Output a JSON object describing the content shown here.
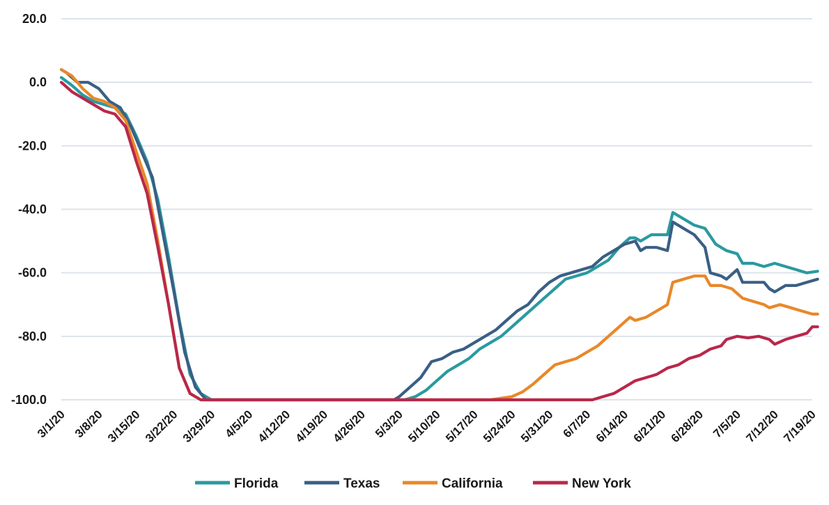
{
  "chart_data": {
    "type": "line",
    "title": "",
    "xlabel": "",
    "ylabel": "",
    "ylim": [
      -100,
      20
    ],
    "yticks": [
      "20.0",
      "0.0",
      "-20.0",
      "-40.0",
      "-60.0",
      "-80.0",
      "-100.0"
    ],
    "ytick_values": [
      20,
      0,
      -20,
      -40,
      -60,
      -80,
      -100
    ],
    "x_start": "3/1/20",
    "x_end": "7/19/20",
    "xticks": [
      "3/1/20",
      "3/8/20",
      "3/15/20",
      "3/22/20",
      "3/29/20",
      "4/5/20",
      "4/12/20",
      "4/19/20",
      "4/26/20",
      "5/3/20",
      "5/10/20",
      "5/17/20",
      "5/24/20",
      "5/31/20",
      "6/7/20",
      "6/14/20",
      "6/21/20",
      "6/28/20",
      "7/5/20",
      "7/12/20",
      "7/19/20"
    ],
    "grid": true,
    "legend_position": "bottom",
    "series": [
      {
        "name": "Florida",
        "color": "#2a9aa0",
        "points": [
          [
            "3/1/20",
            1.5
          ],
          [
            "3/3/20",
            -1
          ],
          [
            "3/5/20",
            -4
          ],
          [
            "3/7/20",
            -6
          ],
          [
            "3/9/20",
            -7
          ],
          [
            "3/11/20",
            -8
          ],
          [
            "3/13/20",
            -10
          ],
          [
            "3/15/20",
            -17
          ],
          [
            "3/17/20",
            -25
          ],
          [
            "3/19/20",
            -37
          ],
          [
            "3/21/20",
            -55
          ],
          [
            "3/23/20",
            -75
          ],
          [
            "3/25/20",
            -92
          ],
          [
            "3/27/20",
            -98
          ],
          [
            "3/29/20",
            -100
          ],
          [
            "5/4/20",
            -100
          ],
          [
            "5/6/20",
            -99
          ],
          [
            "5/8/20",
            -97
          ],
          [
            "5/10/20",
            -94
          ],
          [
            "5/12/20",
            -91
          ],
          [
            "5/14/20",
            -89
          ],
          [
            "5/16/20",
            -87
          ],
          [
            "5/18/20",
            -84
          ],
          [
            "5/20/20",
            -82
          ],
          [
            "5/22/20",
            -80
          ],
          [
            "5/24/20",
            -77
          ],
          [
            "5/26/20",
            -74
          ],
          [
            "5/28/20",
            -71
          ],
          [
            "5/30/20",
            -68
          ],
          [
            "6/1/20",
            -65
          ],
          [
            "6/3/20",
            -62
          ],
          [
            "6/5/20",
            -61
          ],
          [
            "6/7/20",
            -60
          ],
          [
            "6/9/20",
            -58
          ],
          [
            "6/11/20",
            -56
          ],
          [
            "6/13/20",
            -52
          ],
          [
            "6/15/20",
            -49
          ],
          [
            "6/16/20",
            -49
          ],
          [
            "6/17/20",
            -50
          ],
          [
            "6/19/20",
            -48
          ],
          [
            "6/21/20",
            -48
          ],
          [
            "6/22/20",
            -48
          ],
          [
            "6/23/20",
            -41
          ],
          [
            "6/25/20",
            -43
          ],
          [
            "6/27/20",
            -45
          ],
          [
            "6/29/20",
            -46
          ],
          [
            "7/1/20",
            -51
          ],
          [
            "7/3/20",
            -53
          ],
          [
            "7/5/20",
            -54
          ],
          [
            "7/6/20",
            -57
          ],
          [
            "7/8/20",
            -57
          ],
          [
            "7/10/20",
            -58
          ],
          [
            "7/12/20",
            -57
          ],
          [
            "7/14/20",
            -58
          ],
          [
            "7/16/20",
            -59
          ],
          [
            "7/18/20",
            -60
          ],
          [
            "7/20/20",
            -59.5
          ]
        ]
      },
      {
        "name": "Texas",
        "color": "#3a5f85",
        "points": [
          [
            "3/1/20",
            4
          ],
          [
            "3/2/20",
            3
          ],
          [
            "3/4/20",
            0
          ],
          [
            "3/6/20",
            0
          ],
          [
            "3/8/20",
            -2
          ],
          [
            "3/10/20",
            -6
          ],
          [
            "3/12/20",
            -8
          ],
          [
            "3/14/20",
            -14
          ],
          [
            "3/16/20",
            -22
          ],
          [
            "3/18/20",
            -30
          ],
          [
            "3/20/20",
            -48
          ],
          [
            "3/22/20",
            -66
          ],
          [
            "3/24/20",
            -85
          ],
          [
            "3/26/20",
            -96
          ],
          [
            "3/28/20",
            -100
          ],
          [
            "5/2/20",
            -100
          ],
          [
            "5/3/20",
            -99
          ],
          [
            "5/5/20",
            -96
          ],
          [
            "5/7/20",
            -93
          ],
          [
            "5/9/20",
            -88
          ],
          [
            "5/11/20",
            -87
          ],
          [
            "5/13/20",
            -85
          ],
          [
            "5/15/20",
            -84
          ],
          [
            "5/17/20",
            -82
          ],
          [
            "5/19/20",
            -80
          ],
          [
            "5/21/20",
            -78
          ],
          [
            "5/23/20",
            -75
          ],
          [
            "5/25/20",
            -72
          ],
          [
            "5/27/20",
            -70
          ],
          [
            "5/29/20",
            -66
          ],
          [
            "5/31/20",
            -63
          ],
          [
            "6/2/20",
            -61
          ],
          [
            "6/4/20",
            -60
          ],
          [
            "6/6/20",
            -59
          ],
          [
            "6/8/20",
            -58
          ],
          [
            "6/10/20",
            -55
          ],
          [
            "6/12/20",
            -53
          ],
          [
            "6/14/20",
            -51
          ],
          [
            "6/16/20",
            -50
          ],
          [
            "6/17/20",
            -53
          ],
          [
            "6/18/20",
            -52
          ],
          [
            "6/20/20",
            -52
          ],
          [
            "6/22/20",
            -53
          ],
          [
            "6/23/20",
            -44
          ],
          [
            "6/25/20",
            -46
          ],
          [
            "6/27/20",
            -48
          ],
          [
            "6/29/20",
            -52
          ],
          [
            "6/30/20",
            -60
          ],
          [
            "7/2/20",
            -61
          ],
          [
            "7/3/20",
            -62
          ],
          [
            "7/5/20",
            -59
          ],
          [
            "7/6/20",
            -63
          ],
          [
            "7/8/20",
            -63
          ],
          [
            "7/10/20",
            -63
          ],
          [
            "7/11/20",
            -65
          ],
          [
            "7/12/20",
            -66
          ],
          [
            "7/14/20",
            -64
          ],
          [
            "7/16/20",
            -64
          ],
          [
            "7/18/20",
            -63
          ],
          [
            "7/20/20",
            -62
          ]
        ]
      },
      {
        "name": "California",
        "color": "#e8882a",
        "points": [
          [
            "3/1/20",
            4
          ],
          [
            "3/3/20",
            2
          ],
          [
            "3/5/20",
            -2
          ],
          [
            "3/7/20",
            -5
          ],
          [
            "3/9/20",
            -6
          ],
          [
            "3/11/20",
            -8
          ],
          [
            "3/13/20",
            -12
          ],
          [
            "3/15/20",
            -22
          ],
          [
            "3/17/20",
            -32
          ],
          [
            "3/19/20",
            -50
          ],
          [
            "3/21/20",
            -70
          ],
          [
            "3/23/20",
            -90
          ],
          [
            "3/25/20",
            -98
          ],
          [
            "3/27/20",
            -100
          ],
          [
            "5/20/20",
            -100
          ],
          [
            "5/22/20",
            -99.5
          ],
          [
            "5/24/20",
            -99
          ],
          [
            "5/26/20",
            -97.5
          ],
          [
            "5/28/20",
            -95
          ],
          [
            "5/30/20",
            -92
          ],
          [
            "6/1/20",
            -89
          ],
          [
            "6/3/20",
            -88
          ],
          [
            "6/5/20",
            -87
          ],
          [
            "6/7/20",
            -85
          ],
          [
            "6/9/20",
            -83
          ],
          [
            "6/11/20",
            -80
          ],
          [
            "6/13/20",
            -77
          ],
          [
            "6/15/20",
            -74
          ],
          [
            "6/16/20",
            -75
          ],
          [
            "6/18/20",
            -74
          ],
          [
            "6/20/20",
            -72
          ],
          [
            "6/22/20",
            -70
          ],
          [
            "6/23/20",
            -63
          ],
          [
            "6/25/20",
            -62
          ],
          [
            "6/27/20",
            -61
          ],
          [
            "6/29/20",
            -61
          ],
          [
            "6/30/20",
            -64
          ],
          [
            "7/2/20",
            -64
          ],
          [
            "7/4/20",
            -65
          ],
          [
            "7/6/20",
            -68
          ],
          [
            "7/8/20",
            -69
          ],
          [
            "7/10/20",
            -70
          ],
          [
            "7/11/20",
            -71
          ],
          [
            "7/13/20",
            -70
          ],
          [
            "7/15/20",
            -71
          ],
          [
            "7/17/20",
            -72
          ],
          [
            "7/19/20",
            -73
          ],
          [
            "7/20/20",
            -73
          ]
        ]
      },
      {
        "name": "New York",
        "color": "#b8284a",
        "points": [
          [
            "3/1/20",
            0
          ],
          [
            "3/3/20",
            -3
          ],
          [
            "3/5/20",
            -5
          ],
          [
            "3/7/20",
            -7
          ],
          [
            "3/9/20",
            -9
          ],
          [
            "3/11/20",
            -10
          ],
          [
            "3/13/20",
            -14
          ],
          [
            "3/15/20",
            -25
          ],
          [
            "3/17/20",
            -35
          ],
          [
            "3/19/20",
            -52
          ],
          [
            "3/21/20",
            -70
          ],
          [
            "3/23/20",
            -90
          ],
          [
            "3/25/20",
            -98
          ],
          [
            "3/27/20",
            -100
          ],
          [
            "6/8/20",
            -100
          ],
          [
            "6/10/20",
            -99
          ],
          [
            "6/12/20",
            -98
          ],
          [
            "6/14/20",
            -96
          ],
          [
            "6/16/20",
            -94
          ],
          [
            "6/18/20",
            -93
          ],
          [
            "6/20/20",
            -92
          ],
          [
            "6/22/20",
            -90
          ],
          [
            "6/24/20",
            -89
          ],
          [
            "6/26/20",
            -87
          ],
          [
            "6/28/20",
            -86
          ],
          [
            "6/30/20",
            -84
          ],
          [
            "7/2/20",
            -83
          ],
          [
            "7/3/20",
            -81
          ],
          [
            "7/5/20",
            -80
          ],
          [
            "7/7/20",
            -80.5
          ],
          [
            "7/9/20",
            -80
          ],
          [
            "7/11/20",
            -81
          ],
          [
            "7/12/20",
            -82.5
          ],
          [
            "7/14/20",
            -81
          ],
          [
            "7/16/20",
            -80
          ],
          [
            "7/18/20",
            -79
          ],
          [
            "7/19/20",
            -77
          ],
          [
            "7/20/20",
            -77
          ]
        ]
      }
    ]
  }
}
